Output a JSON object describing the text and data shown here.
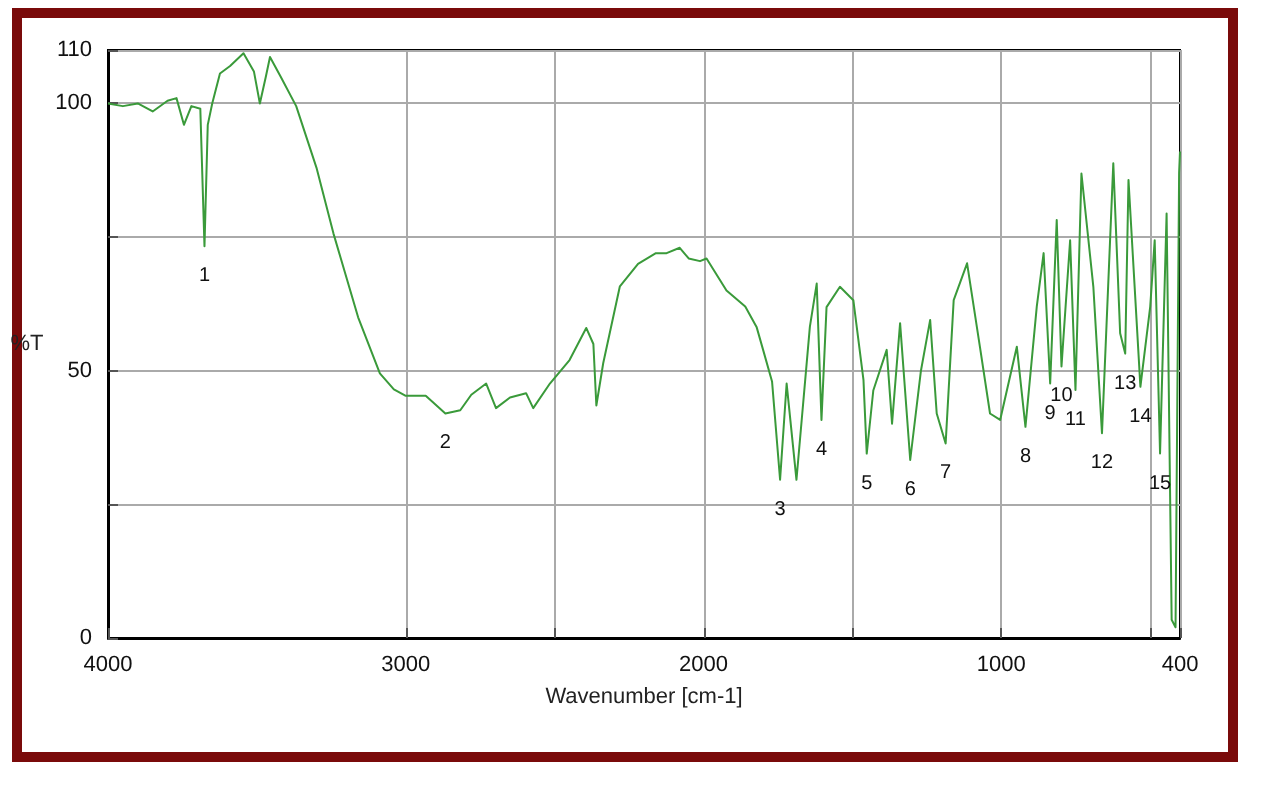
{
  "chart_data": {
    "type": "line",
    "xlabel": "Wavenumber [cm-1]",
    "ylabel": "%T",
    "color": "#3a9a3a",
    "x": [
      4000,
      3950,
      3900,
      3850,
      3800,
      3770,
      3745,
      3720,
      3690,
      3676,
      3665,
      3650,
      3624,
      3590,
      3545,
      3510,
      3490,
      3470,
      3456,
      3420,
      3368,
      3300,
      3243,
      3160,
      3087,
      3040,
      3000,
      2933,
      2867,
      2817,
      2780,
      2730,
      2697,
      2650,
      2596,
      2572,
      2516,
      2450,
      2394,
      2370,
      2360,
      2337,
      2281,
      2220,
      2160,
      2124,
      2080,
      2050,
      2012,
      1990,
      1923,
      1860,
      1822,
      1800,
      1770,
      1743,
      1721,
      1688,
      1643,
      1620,
      1604,
      1587,
      1542,
      1497,
      1463,
      1452,
      1430,
      1385,
      1367,
      1340,
      1306,
      1270,
      1239,
      1217,
      1187,
      1160,
      1115,
      1072,
      1038,
      1004,
      948,
      919,
      881,
      858,
      836,
      814,
      798,
      769,
      751,
      731,
      691,
      662,
      624,
      601,
      584,
      573,
      533,
      500,
      485,
      467,
      445,
      428,
      415,
      403,
      400
    ],
    "values": [
      100,
      99.5,
      100,
      98.5,
      100.5,
      101,
      96,
      99.5,
      99,
      73.3,
      96,
      100,
      105.6,
      107,
      109.4,
      106,
      100,
      105,
      108.7,
      105,
      99.5,
      88,
      75.7,
      60,
      49.5,
      46.5,
      45.3,
      45.3,
      42,
      42.6,
      45.5,
      47.6,
      43,
      45,
      45.8,
      43,
      47.6,
      52,
      58,
      55,
      43.5,
      51.4,
      65.8,
      70,
      72,
      72,
      73,
      71,
      70.5,
      71,
      65,
      62,
      58.2,
      53.9,
      48,
      29.6,
      47.6,
      29.6,
      58.2,
      66.3,
      40.8,
      61.9,
      65.7,
      63.2,
      48.3,
      34.5,
      46.3,
      53.9,
      40.1,
      58.9,
      33.3,
      50,
      59.5,
      42,
      36.4,
      63.2,
      70.1,
      54.5,
      42,
      40.8,
      54.5,
      39.5,
      62,
      72,
      47.6,
      78.2,
      50.8,
      74.4,
      46.4,
      86.9,
      65.7,
      38.3,
      88.8,
      57,
      53.2,
      85.7,
      47,
      62,
      74.4,
      34.5,
      79.4,
      3.4,
      2,
      87,
      91
    ],
    "xlim": [
      4000,
      400
    ],
    "xticks": [
      4000,
      3000,
      {
        "value": 2500,
        "label": null
      },
      2000,
      {
        "value": 1500,
        "label": null
      },
      1000,
      {
        "value": 500,
        "label": null
      },
      400
    ],
    "ylim": [
      0,
      110
    ],
    "yticks": [
      0,
      {
        "value": 25,
        "label": null
      },
      50,
      {
        "value": 75,
        "label": null
      },
      100,
      110
    ],
    "grid": true,
    "annotations": [
      {
        "text": "1",
        "x": 3676,
        "y": 73.3
      },
      {
        "text": "2",
        "x": 2867,
        "y": 42
      },
      {
        "text": "3",
        "x": 1743,
        "y": 29.6
      },
      {
        "text": "4",
        "x": 1604,
        "y": 40.8
      },
      {
        "text": "5",
        "x": 1452,
        "y": 34.5
      },
      {
        "text": "6",
        "x": 1306,
        "y": 33.3
      },
      {
        "text": "7",
        "x": 1187,
        "y": 36.4
      },
      {
        "text": "8",
        "x": 919,
        "y": 39.5
      },
      {
        "text": "9",
        "x": 836,
        "y": 47.6
      },
      {
        "text": "10",
        "x": 798,
        "y": 50.8
      },
      {
        "text": "11",
        "x": 751,
        "y": 46.4
      },
      {
        "text": "12",
        "x": 662,
        "y": 38.3
      },
      {
        "text": "13",
        "x": 584,
        "y": 53.2
      },
      {
        "text": "14",
        "x": 533,
        "y": 47
      },
      {
        "text": "15",
        "x": 467,
        "y": 34.5
      }
    ]
  }
}
